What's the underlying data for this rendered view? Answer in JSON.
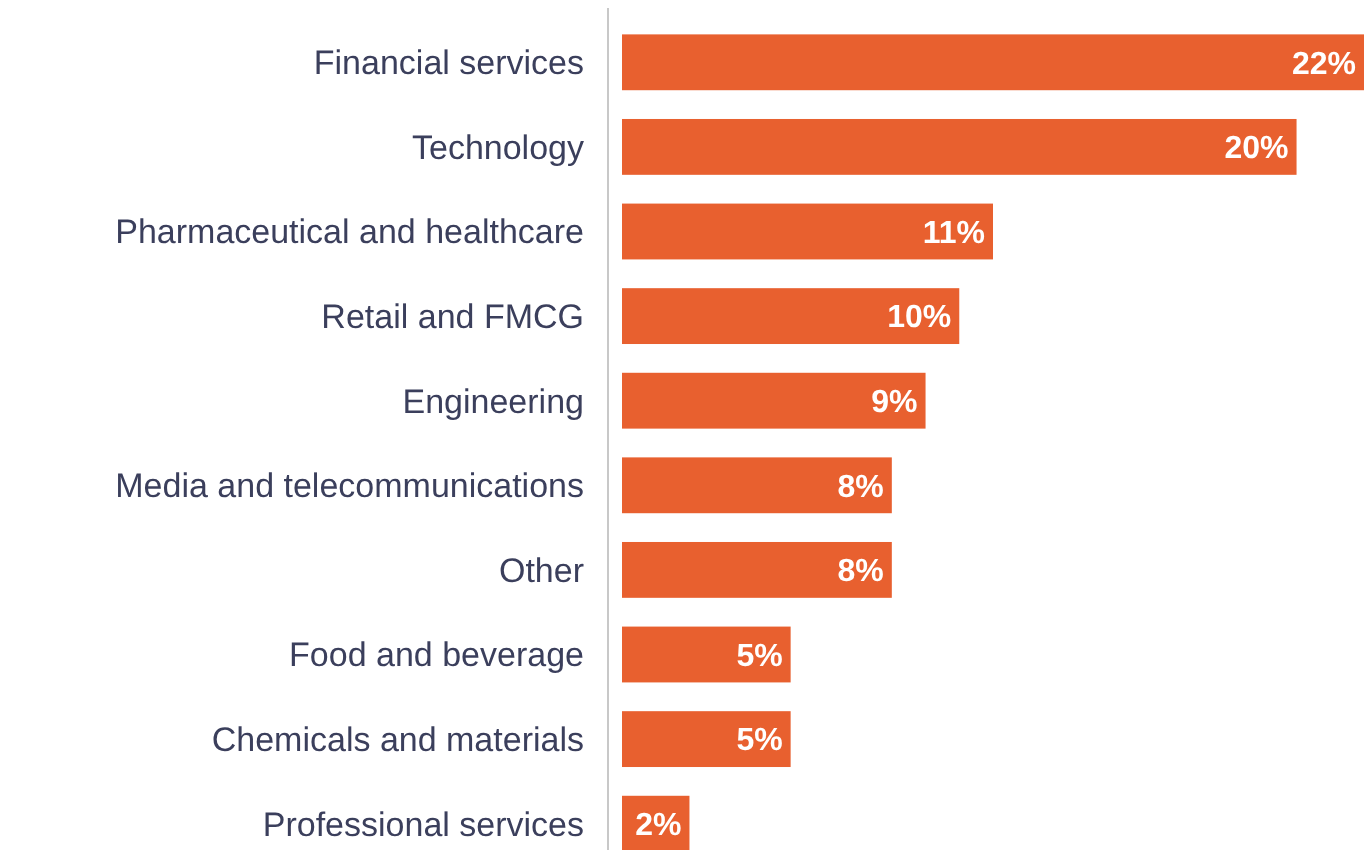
{
  "chart_data": {
    "type": "bar",
    "orientation": "horizontal",
    "categories": [
      "Financial services",
      "Technology",
      "Pharmaceutical and healthcare",
      "Retail and FMCG",
      "Engineering",
      "Media and telecommunications",
      "Other",
      "Food and beverage",
      "Chemicals and materials",
      "Professional services"
    ],
    "values": [
      22,
      20,
      11,
      10,
      9,
      8,
      8,
      5,
      5,
      2
    ],
    "value_labels": [
      "22%",
      "20%",
      "11%",
      "10%",
      "9%",
      "8%",
      "8%",
      "5%",
      "5%",
      "2%"
    ],
    "color": "#e8602f"
  }
}
